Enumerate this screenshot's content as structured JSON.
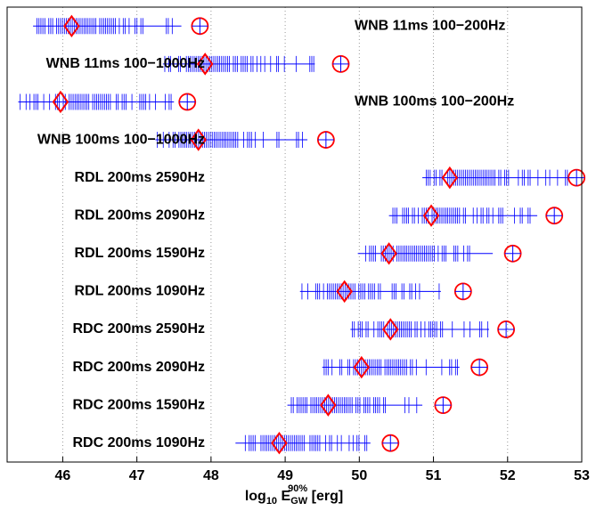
{
  "chart_data": {
    "type": "strip",
    "categories": [
      "WNB 11ms 100−200Hz",
      "WNB 11ms 100−1000Hz",
      "WNB 100ms 100−200Hz",
      "WNB 100ms 100−1000Hz",
      "RDL 200ms 2590Hz",
      "RDL 200ms 2090Hz",
      "RDL 200ms 1590Hz",
      "RDL 200ms 1090Hz",
      "RDC 200ms 2590Hz",
      "RDC 200ms 2090Hz",
      "RDC 200ms 1590Hz",
      "RDC 200ms 1090Hz"
    ],
    "series": [
      {
        "marker": "plus",
        "color": "#0000ff",
        "low": [
          45.6,
          47.35,
          45.4,
          47.25,
          50.85,
          50.4,
          49.98,
          49.2,
          49.88,
          49.5,
          49.03,
          48.33
        ],
        "high": [
          47.6,
          49.4,
          47.5,
          49.3,
          52.9,
          52.4,
          51.8,
          51.1,
          51.75,
          51.35,
          50.85,
          50.15
        ]
      },
      {
        "marker": "diamond",
        "color": "#ff0000",
        "values": [
          46.12,
          47.92,
          45.97,
          47.83,
          51.22,
          50.97,
          50.4,
          49.8,
          50.42,
          50.03,
          49.58,
          48.92
        ]
      },
      {
        "marker": "circle-plus",
        "color": "#ff0000",
        "values": [
          47.85,
          49.75,
          47.68,
          49.55,
          52.93,
          52.63,
          52.07,
          51.4,
          51.98,
          51.62,
          51.13,
          50.42
        ]
      }
    ],
    "xlim": [
      45.25,
      53
    ],
    "xticks": [
      46,
      47,
      48,
      49,
      50,
      51,
      52,
      53
    ],
    "grid": true,
    "xlabel": [
      "log",
      "10",
      " E",
      "GW",
      "90%",
      " [erg]"
    ]
  }
}
